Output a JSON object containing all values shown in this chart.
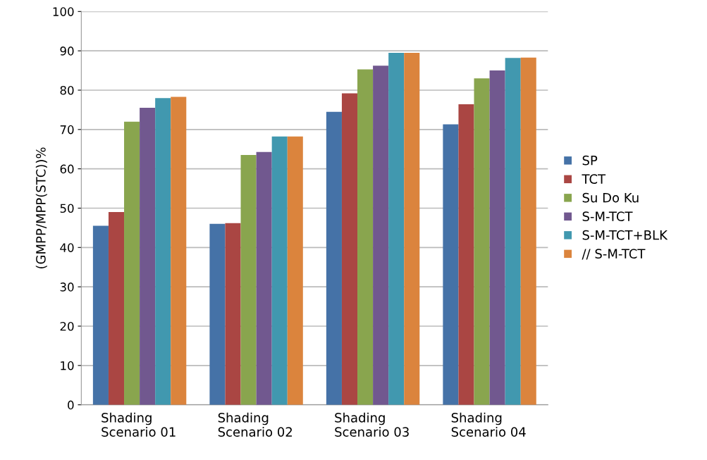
{
  "chart_data": {
    "type": "bar",
    "ylabel": "(GMPP/MPP(STC))%",
    "categories": [
      "Shading\nScenario 01",
      "Shading\nScenario 02",
      "Shading\nScenario 03",
      "Shading\nScenario 04"
    ],
    "series": [
      {
        "name": "SP",
        "color": "#4572a7",
        "values": [
          45.5,
          46,
          74.5,
          71.3
        ]
      },
      {
        "name": "TCT",
        "color": "#aa4643",
        "values": [
          49,
          46.2,
          79.2,
          76.4
        ]
      },
      {
        "name": "Su Do Ku",
        "color": "#89a54e",
        "values": [
          72,
          63.5,
          85.3,
          83
        ]
      },
      {
        "name": "S-M-TCT",
        "color": "#71588f",
        "values": [
          75.5,
          64.3,
          86.2,
          85
        ]
      },
      {
        "name": "S-M-TCT+BLK",
        "color": "#4198af",
        "values": [
          78,
          68.2,
          89.5,
          88.2
        ]
      },
      {
        "name": "// S-M-TCT",
        "color": "#db843d",
        "values": [
          78.3,
          68.2,
          89.5,
          88.3
        ]
      }
    ],
    "ylim": [
      0,
      100
    ],
    "yticks": [
      0,
      10,
      20,
      30,
      40,
      50,
      60,
      70,
      80,
      90,
      100
    ],
    "grid": "y",
    "legend": "right"
  }
}
